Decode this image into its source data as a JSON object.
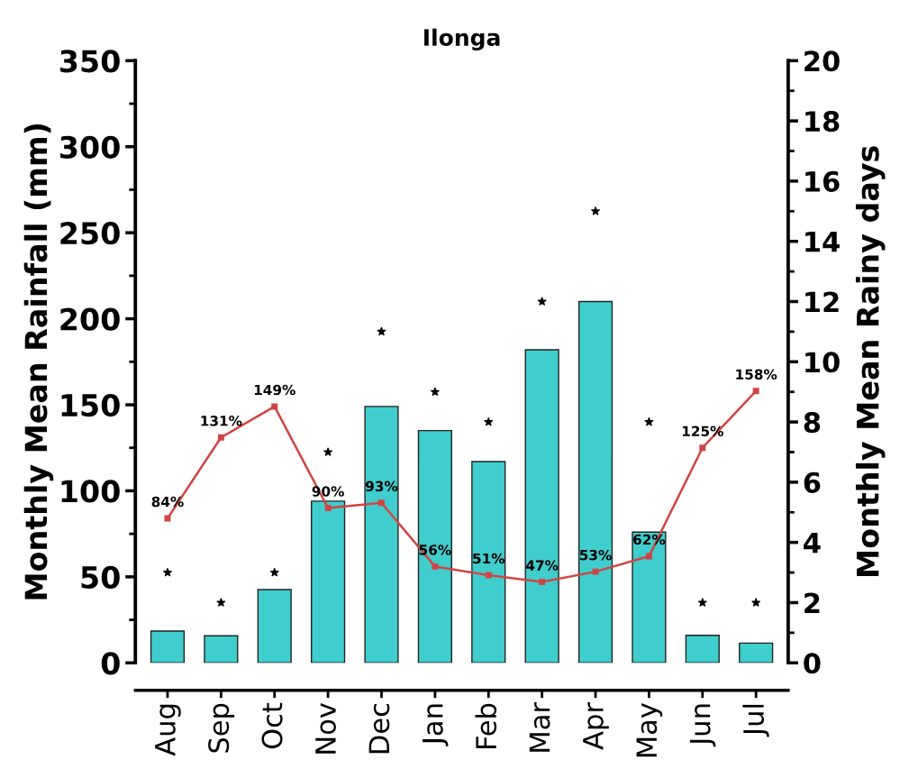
{
  "chart_data": {
    "type": "bar",
    "title": "Ilonga",
    "ylabel": "Monthly Mean Rainfall (mm)",
    "y2label": "Monthly Mean Rainy days",
    "categories": [
      "Aug",
      "Sep",
      "Oct",
      "Nov",
      "Dec",
      "Jan",
      "Feb",
      "Mar",
      "Apr",
      "May",
      "Jun",
      "Jul"
    ],
    "series": [
      {
        "color": "#40cdcd",
        "values": [
          18.5,
          15.7,
          42.6,
          94,
          149,
          135,
          117,
          182,
          210,
          76,
          16,
          11.5
        ]
      },
      {
        "type": "line",
        "color": "#d04444",
        "marker": "square",
        "values": [
          84,
          131,
          149,
          90,
          93,
          56,
          51,
          47,
          53,
          62,
          125,
          158
        ],
        "value_labels": [
          "84%",
          "131%",
          "149%",
          "90%",
          "93%",
          "56%",
          "51%",
          "47%",
          "53%",
          "62%",
          "125%",
          "158%"
        ]
      },
      {
        "type": "scatter",
        "axis": "y2",
        "color": "#000000",
        "marker": "star",
        "values": [
          3,
          2,
          3,
          7,
          11,
          9,
          8,
          12,
          15,
          8,
          2,
          2
        ]
      }
    ],
    "ylim": [
      0,
      350
    ],
    "yticks": [
      0,
      50,
      100,
      150,
      200,
      250,
      300,
      350
    ],
    "y2lim": [
      0,
      20
    ],
    "y2ticks": [
      0,
      2,
      4,
      6,
      8,
      10,
      12,
      14,
      16,
      18,
      20
    ],
    "grid": false
  }
}
